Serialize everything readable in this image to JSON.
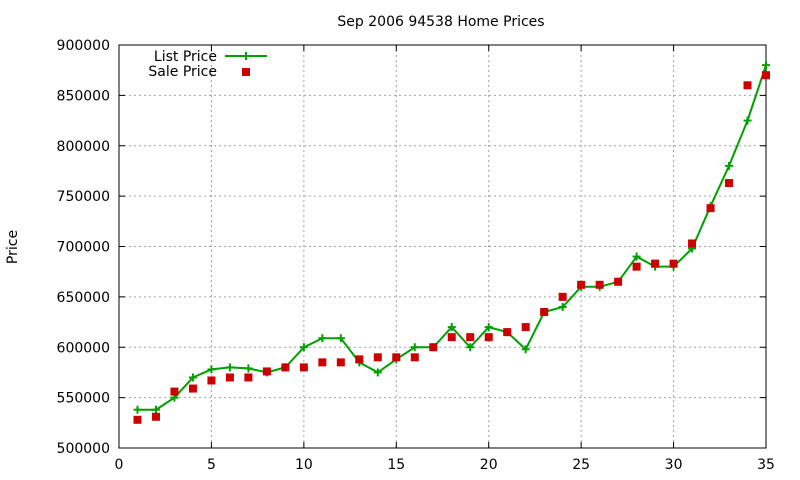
{
  "chart_data": {
    "type": "line",
    "title": "Sep 2006 94538 Home Prices",
    "xlabel": "",
    "ylabel": "Price",
    "xlim": [
      0,
      35
    ],
    "ylim": [
      500000,
      900000
    ],
    "xticks": [
      0,
      5,
      10,
      15,
      20,
      25,
      30,
      35
    ],
    "yticks": [
      500000,
      550000,
      600000,
      650000,
      700000,
      750000,
      800000,
      850000,
      900000
    ],
    "grid": true,
    "legend_position": "top-left",
    "series": [
      {
        "name": "List Price",
        "style": "line+cross",
        "color": "#00a000",
        "x": [
          1,
          2,
          3,
          4,
          5,
          6,
          7,
          8,
          9,
          10,
          11,
          12,
          13,
          14,
          15,
          16,
          17,
          18,
          19,
          20,
          21,
          22,
          23,
          24,
          25,
          26,
          27,
          28,
          29,
          30,
          31,
          32,
          33,
          34,
          35
        ],
        "y": [
          538000,
          538000,
          550000,
          570000,
          578000,
          580000,
          579000,
          575000,
          580000,
          600000,
          609000,
          609000,
          585000,
          575000,
          588000,
          600000,
          600000,
          620000,
          600000,
          620000,
          615000,
          598000,
          635000,
          640000,
          660000,
          660000,
          665000,
          690000,
          680000,
          680000,
          698000,
          740000,
          780000,
          825000,
          880000
        ]
      },
      {
        "name": "Sale Price",
        "style": "square",
        "color": "#cc0000",
        "x": [
          1,
          2,
          3,
          4,
          5,
          6,
          7,
          8,
          9,
          10,
          11,
          12,
          13,
          14,
          15,
          16,
          17,
          18,
          19,
          20,
          21,
          22,
          23,
          24,
          25,
          26,
          27,
          28,
          29,
          30,
          31,
          32,
          33,
          34,
          35
        ],
        "y": [
          528000,
          531000,
          556000,
          559000,
          567000,
          570000,
          570000,
          576000,
          580000,
          580000,
          585000,
          585000,
          588000,
          590000,
          590000,
          590000,
          600000,
          610000,
          610000,
          610000,
          615000,
          620000,
          635000,
          650000,
          662000,
          662000,
          665000,
          680000,
          683000,
          683000,
          703000,
          738000,
          763000,
          860000,
          870000
        ]
      }
    ]
  }
}
